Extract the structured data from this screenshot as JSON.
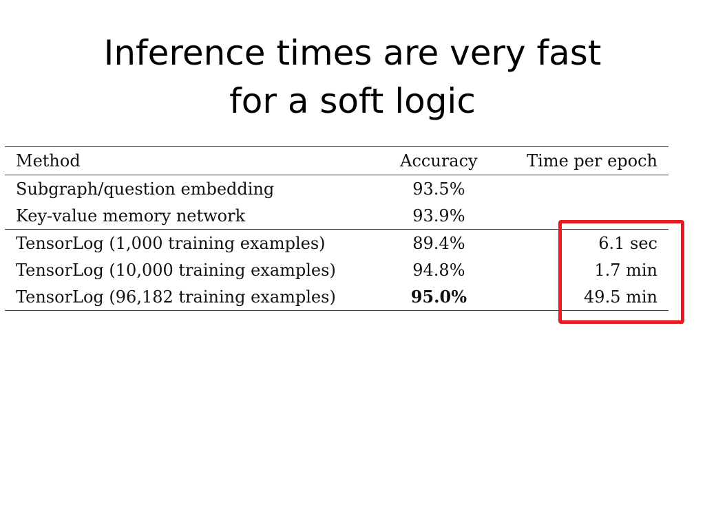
{
  "slide": {
    "title_line1": "Inference times are very fast",
    "title_line2": "for a soft logic"
  },
  "table": {
    "headers": {
      "method": "Method",
      "accuracy": "Accuracy",
      "time": "Time per epoch"
    },
    "rows": [
      {
        "method": "Subgraph/question embedding",
        "accuracy": "93.5%",
        "time": ""
      },
      {
        "method": "Key-value memory network",
        "accuracy": "93.9%",
        "time": ""
      },
      {
        "method": "TensorLog (1,000 training examples)",
        "accuracy": "89.4%",
        "time": "6.1 sec"
      },
      {
        "method": "TensorLog (10,000 training examples)",
        "accuracy": "94.8%",
        "time": "1.7 min"
      },
      {
        "method": "TensorLog (96,182 training examples)",
        "accuracy": "95.0%",
        "time": "49.5 min"
      }
    ]
  },
  "highlight": {
    "color": "#e8191f"
  }
}
